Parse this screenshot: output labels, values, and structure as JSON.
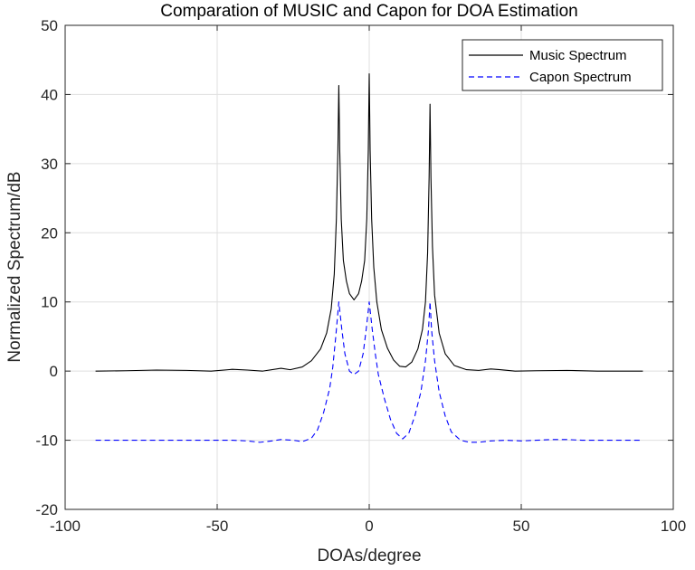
{
  "chart_data": {
    "type": "line",
    "title": "Comparation of MUSIC and Capon for DOA Estimation",
    "xlabel": "DOAs/degree",
    "ylabel": "Normalized Spectrum/dB",
    "xlim": [
      -100,
      100
    ],
    "ylim": [
      -20,
      50
    ],
    "xticks": [
      -100,
      -50,
      0,
      50,
      100
    ],
    "yticks": [
      -20,
      -10,
      0,
      10,
      20,
      30,
      40,
      50
    ],
    "grid": true,
    "legend_position": "top-right",
    "series": [
      {
        "name": "Music Spectrum",
        "color": "#000000",
        "line_style": "solid",
        "points": [
          [
            -90,
            0.0
          ],
          [
            -80,
            0.05
          ],
          [
            -70,
            0.15
          ],
          [
            -60,
            0.1
          ],
          [
            -52,
            0.0
          ],
          [
            -45,
            0.25
          ],
          [
            -40,
            0.15
          ],
          [
            -35,
            0.0
          ],
          [
            -29,
            0.4
          ],
          [
            -26,
            0.2
          ],
          [
            -22,
            0.6
          ],
          [
            -19,
            1.5
          ],
          [
            -16,
            3.2
          ],
          [
            -14,
            5.5
          ],
          [
            -12.5,
            9.0
          ],
          [
            -11.5,
            14.0
          ],
          [
            -10.8,
            22.0
          ],
          [
            -10.3,
            32.0
          ],
          [
            -10,
            41.3
          ],
          [
            -9.7,
            32.0
          ],
          [
            -9.2,
            22.0
          ],
          [
            -8.5,
            16.0
          ],
          [
            -7.5,
            13.0
          ],
          [
            -6.5,
            11.2
          ],
          [
            -5,
            10.3
          ],
          [
            -3.5,
            11.2
          ],
          [
            -2.5,
            13.0
          ],
          [
            -1.5,
            16.0
          ],
          [
            -0.8,
            22.0
          ],
          [
            -0.3,
            32.0
          ],
          [
            0,
            43.0
          ],
          [
            0.3,
            32.0
          ],
          [
            0.8,
            22.0
          ],
          [
            1.5,
            15.0
          ],
          [
            2.5,
            10.0
          ],
          [
            4,
            6.0
          ],
          [
            6,
            3.3
          ],
          [
            8,
            1.6
          ],
          [
            10,
            0.7
          ],
          [
            12,
            0.6
          ],
          [
            14,
            1.3
          ],
          [
            16,
            3.2
          ],
          [
            17.5,
            6.0
          ],
          [
            18.5,
            10.0
          ],
          [
            19.2,
            17.0
          ],
          [
            19.7,
            28.0
          ],
          [
            20,
            38.6
          ],
          [
            20.3,
            28.0
          ],
          [
            20.8,
            18.0
          ],
          [
            21.5,
            11.0
          ],
          [
            23,
            5.5
          ],
          [
            25,
            2.5
          ],
          [
            28,
            0.8
          ],
          [
            32,
            0.2
          ],
          [
            36,
            0.1
          ],
          [
            40,
            0.3
          ],
          [
            43,
            0.2
          ],
          [
            48,
            0.0
          ],
          [
            55,
            0.05
          ],
          [
            65,
            0.1
          ],
          [
            75,
            0.0
          ],
          [
            90,
            0.0
          ]
        ]
      },
      {
        "name": "Capon Spectrum",
        "color": "#0000ff",
        "line_style": "dashed",
        "points": [
          [
            -90,
            -10.0
          ],
          [
            -70,
            -10.0
          ],
          [
            -60,
            -10.0
          ],
          [
            -50,
            -10.0
          ],
          [
            -45,
            -10.0
          ],
          [
            -40,
            -10.1
          ],
          [
            -36,
            -10.3
          ],
          [
            -32,
            -10.1
          ],
          [
            -29,
            -9.9
          ],
          [
            -25,
            -10.0
          ],
          [
            -22,
            -10.2
          ],
          [
            -19,
            -9.7
          ],
          [
            -17,
            -8.5
          ],
          [
            -15,
            -6.0
          ],
          [
            -13,
            -2.5
          ],
          [
            -12,
            0.5
          ],
          [
            -11,
            5.0
          ],
          [
            -10,
            10.0
          ],
          [
            -9,
            6.0
          ],
          [
            -8,
            2.5
          ],
          [
            -6.5,
            0.0
          ],
          [
            -5,
            -0.5
          ],
          [
            -3.5,
            0.0
          ],
          [
            -2,
            2.5
          ],
          [
            -1,
            6.0
          ],
          [
            0,
            10.0
          ],
          [
            1,
            6.0
          ],
          [
            2,
            2.5
          ],
          [
            3,
            -0.5
          ],
          [
            5,
            -4.0
          ],
          [
            7,
            -7.0
          ],
          [
            9,
            -9.0
          ],
          [
            11,
            -9.8
          ],
          [
            13,
            -9.0
          ],
          [
            15,
            -6.5
          ],
          [
            17,
            -3.0
          ],
          [
            18.5,
            1.5
          ],
          [
            19.5,
            6.0
          ],
          [
            20,
            10.0
          ],
          [
            20.5,
            6.0
          ],
          [
            21.5,
            1.5
          ],
          [
            23,
            -3.0
          ],
          [
            25,
            -6.5
          ],
          [
            27,
            -8.8
          ],
          [
            30,
            -10.0
          ],
          [
            33,
            -10.3
          ],
          [
            36,
            -10.3
          ],
          [
            40,
            -10.1
          ],
          [
            45,
            -10.0
          ],
          [
            50,
            -10.1
          ],
          [
            55,
            -10.0
          ],
          [
            60,
            -9.9
          ],
          [
            65,
            -9.9
          ],
          [
            70,
            -10.0
          ],
          [
            80,
            -10.0
          ],
          [
            90,
            -10.0
          ]
        ]
      }
    ]
  }
}
